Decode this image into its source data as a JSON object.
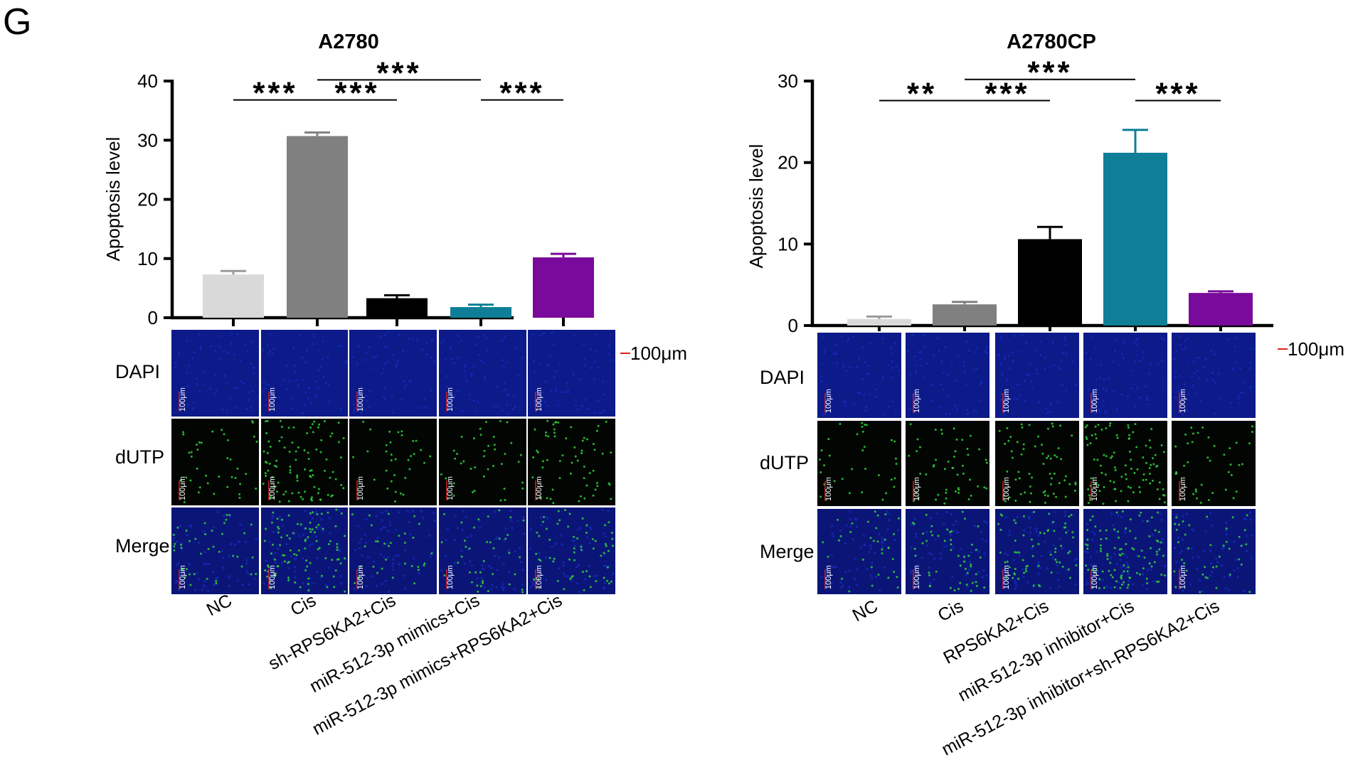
{
  "panel_label": "G",
  "micrograph_rows": [
    "DAPI",
    "dUTP",
    "Merge"
  ],
  "scale_bar_label": "100μm",
  "cell_scale_label": "100μm",
  "colors": {
    "dapi": "#1428b4",
    "dutp": "#2fd23c",
    "scale": "#e02020"
  },
  "chart_data": [
    {
      "type": "bar",
      "title": "A2780",
      "xlabel": "",
      "ylabel": "Apoptosis level",
      "ylim": [
        0,
        40
      ],
      "yticks": [
        0,
        10,
        20,
        30,
        40
      ],
      "categories": [
        "NC",
        "Cis",
        "sh-RPS6KA2+Cis",
        "miR-512-3p mimics+Cis",
        "miR-512-3p mimics+RPS6KA2+Cis"
      ],
      "values": [
        7.3,
        30.7,
        3.3,
        1.8,
        10.2
      ],
      "errors": [
        0.6,
        0.6,
        0.5,
        0.4,
        0.6
      ],
      "colors": [
        "#d9d9d9",
        "#808080",
        "#000000",
        "#0e7f96",
        "#7a0a9b"
      ],
      "significance": [
        {
          "from": 0,
          "to": 1,
          "label": "***",
          "y": 36.8
        },
        {
          "from": 1,
          "to": 2,
          "label": "***",
          "y": 36.8
        },
        {
          "from": 1,
          "to": 3,
          "label": "***",
          "y": 40.2
        },
        {
          "from": 3,
          "to": 4,
          "label": "***",
          "y": 36.8
        }
      ],
      "dutp_intensity": [
        0.35,
        0.85,
        0.3,
        0.35,
        0.55
      ]
    },
    {
      "type": "bar",
      "title": "A2780CP",
      "xlabel": "",
      "ylabel": "Apoptosis level",
      "ylim": [
        0,
        30
      ],
      "yticks": [
        0,
        10,
        20,
        30
      ],
      "categories": [
        "NC",
        "Cis",
        "RPS6KA2+Cis",
        "miR-512-3p inhibitor+Cis",
        "miR-512-3p inhibitor+sh-RPS6KA2+Cis"
      ],
      "values": [
        0.8,
        2.6,
        10.6,
        21.2,
        4.0
      ],
      "errors": [
        0.3,
        0.3,
        1.5,
        2.8,
        0.2
      ],
      "colors": [
        "#d9d9d9",
        "#808080",
        "#000000",
        "#0e7f96",
        "#7a0a9b"
      ],
      "significance": [
        {
          "from": 0,
          "to": 1,
          "label": "**",
          "y": 27.6
        },
        {
          "from": 1,
          "to": 2,
          "label": "***",
          "y": 27.6
        },
        {
          "from": 1,
          "to": 3,
          "label": "***",
          "y": 30.2
        },
        {
          "from": 3,
          "to": 4,
          "label": "***",
          "y": 27.6
        }
      ],
      "dutp_intensity": [
        0.3,
        0.45,
        0.6,
        0.9,
        0.35
      ]
    }
  ]
}
